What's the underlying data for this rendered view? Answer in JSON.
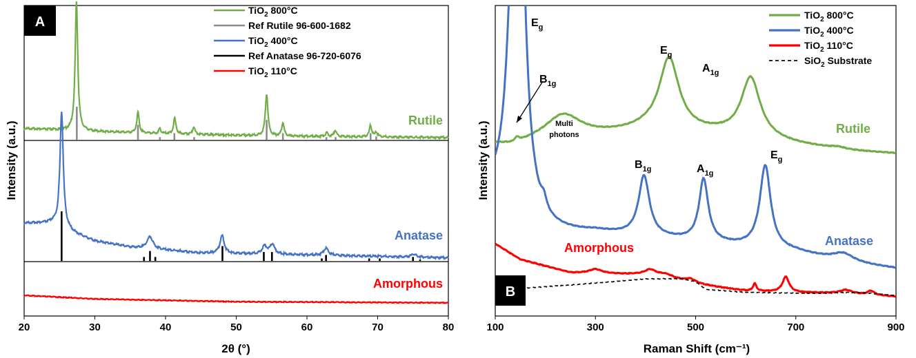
{
  "chart_data": [
    {
      "panel_label": "A",
      "type": "line",
      "xlabel": "2θ (°)",
      "ylabel": "Intensity (a.u.)",
      "xlim": [
        20,
        80
      ],
      "xticks": [
        20,
        30,
        40,
        50,
        60,
        70,
        80
      ],
      "legend_position": "top-right",
      "legend": [
        {
          "text": "TiO",
          "sub": "2",
          "rest": " 800°C",
          "color": "#70ad47"
        },
        {
          "text": "Ref Rutile 96-600-1682",
          "sub": "",
          "rest": "",
          "color": "#8c8c8c"
        },
        {
          "text": "TiO",
          "sub": "2",
          "rest": " 400°C",
          "color": "#4472c4"
        },
        {
          "text": "Ref Anatase 96-720-6076",
          "sub": "",
          "rest": "",
          "color": "#000000"
        },
        {
          "text": "TiO",
          "sub": "2",
          "rest": " 110°C",
          "color": "#ff0000"
        }
      ],
      "phase_labels": [
        {
          "text": "Rutile",
          "color": "#70ad47"
        },
        {
          "text": "Anatase",
          "color": "#4472c4"
        },
        {
          "text": "Amorphous",
          "color": "#ff0000"
        }
      ],
      "series": [
        {
          "name": "TiO2 800°C",
          "color": "#70ad47",
          "baseline": [
            [
              20,
              0.3
            ],
            [
              30,
              0.22
            ],
            [
              40,
              0.16
            ],
            [
              55,
              0.1
            ],
            [
              80,
              0.06
            ]
          ],
          "peaks": [
            [
              27.4,
              3.4,
              0.22
            ],
            [
              36.1,
              0.55,
              0.2
            ],
            [
              39.2,
              0.12,
              0.2
            ],
            [
              41.3,
              0.42,
              0.2
            ],
            [
              44.0,
              0.2,
              0.2
            ],
            [
              54.3,
              1.1,
              0.22
            ],
            [
              56.6,
              0.35,
              0.2
            ],
            [
              62.8,
              0.1,
              0.2
            ],
            [
              64.0,
              0.16,
              0.2
            ],
            [
              69.0,
              0.3,
              0.2
            ],
            [
              69.8,
              0.12,
              0.2
            ]
          ]
        },
        {
          "name": "Ref Rutile 96-600-1682",
          "color": "#8c8c8c",
          "sticks": [
            [
              27.45,
              1.0
            ],
            [
              36.1,
              0.45
            ],
            [
              39.2,
              0.08
            ],
            [
              41.25,
              0.2
            ],
            [
              44.05,
              0.08
            ],
            [
              54.3,
              0.6
            ],
            [
              56.6,
              0.2
            ],
            [
              62.75,
              0.08
            ],
            [
              64.05,
              0.08
            ],
            [
              69.0,
              0.2
            ],
            [
              69.8,
              0.1
            ]
          ]
        },
        {
          "name": "TiO2 400°C",
          "color": "#4472c4",
          "baseline": [
            [
              20,
              0.95
            ],
            [
              24,
              0.95
            ],
            [
              27,
              0.7
            ],
            [
              30,
              0.5
            ],
            [
              35,
              0.35
            ],
            [
              45,
              0.2
            ],
            [
              60,
              0.15
            ],
            [
              80,
              0.08
            ]
          ],
          "peaks": [
            [
              25.3,
              2.9,
              0.28
            ],
            [
              37.8,
              0.3,
              0.5
            ],
            [
              48.0,
              0.45,
              0.35
            ],
            [
              54.0,
              0.2,
              0.4
            ],
            [
              55.1,
              0.25,
              0.4
            ],
            [
              62.7,
              0.18,
              0.4
            ],
            [
              75.1,
              0.08,
              0.4
            ]
          ]
        },
        {
          "name": "Ref Anatase 96-720-6076",
          "color": "#000000",
          "sticks": [
            [
              25.3,
              1.0
            ],
            [
              36.95,
              0.08
            ],
            [
              37.8,
              0.2
            ],
            [
              38.55,
              0.08
            ],
            [
              48.05,
              0.3
            ],
            [
              53.9,
              0.18
            ],
            [
              55.05,
              0.18
            ],
            [
              62.1,
              0.05
            ],
            [
              62.7,
              0.12
            ],
            [
              68.8,
              0.05
            ],
            [
              70.3,
              0.05
            ],
            [
              75.0,
              0.08
            ],
            [
              76.0,
              0.03
            ]
          ]
        },
        {
          "name": "TiO2 110°C",
          "color": "#ff0000",
          "baseline": [
            [
              20,
              0.35
            ],
            [
              30,
              0.22
            ],
            [
              50,
              0.12
            ],
            [
              80,
              0.08
            ]
          ],
          "peaks": []
        }
      ]
    },
    {
      "panel_label": "B",
      "type": "line",
      "xlabel": "Raman Shift (cm⁻¹)",
      "ylabel": "Intensity (a.u.)",
      "xlim": [
        100,
        900
      ],
      "xticks": [
        100,
        300,
        500,
        700,
        900
      ],
      "legend_position": "top-right",
      "legend": [
        {
          "text": "TiO",
          "sub": "2",
          "rest": " 800°C",
          "color": "#70ad47",
          "dash": false
        },
        {
          "text": "TiO",
          "sub": "2",
          "rest": " 400°C",
          "color": "#4472c4",
          "dash": false
        },
        {
          "text": "TiO",
          "sub": "2",
          "rest": " 110°C",
          "color": "#ff0000",
          "dash": false
        },
        {
          "text": "SiO",
          "sub": "2",
          "rest": " Substrate",
          "color": "#000000",
          "dash": true
        }
      ],
      "phase_labels": [
        {
          "text": "Rutile",
          "color": "#70ad47"
        },
        {
          "text": "Anatase",
          "color": "#4472c4"
        },
        {
          "text": "Amorphous",
          "color": "#ff0000"
        }
      ],
      "annotations": [
        {
          "main": "E",
          "sub": "g"
        },
        {
          "main": "B",
          "sub": "1g"
        },
        {
          "main": "E",
          "sub": "g"
        },
        {
          "main": "A",
          "sub": "1g"
        },
        {
          "main": "B",
          "sub": "1g"
        },
        {
          "main": "A",
          "sub": "1g"
        },
        {
          "main": "E",
          "sub": "g"
        }
      ],
      "multiphoton_label": [
        "Multi",
        "photons"
      ],
      "series": [
        {
          "name": "TiO2 800°C",
          "color": "#70ad47",
          "baseline": [
            [
              100,
              3.7
            ],
            [
              135,
              3.65
            ],
            [
              180,
              3.75
            ],
            [
              300,
              3.9
            ],
            [
              400,
              4.05
            ],
            [
              550,
              3.95
            ],
            [
              700,
              3.7
            ],
            [
              800,
              3.55
            ],
            [
              900,
              3.48
            ]
          ],
          "peaks": [
            [
              143,
              0.1,
              6
            ],
            [
              235,
              0.6,
              45
            ],
            [
              447,
              1.75,
              24
            ],
            [
              610,
              1.45,
              23
            ],
            [
              785,
              0.05,
              20
            ]
          ]
        },
        {
          "name": "TiO2 400°C",
          "color": "#4472c4",
          "baseline": [
            [
              100,
              2.2
            ],
            [
              170,
              1.45
            ],
            [
              300,
              1.55
            ],
            [
              500,
              1.35
            ],
            [
              700,
              1.1
            ],
            [
              800,
              0.85
            ],
            [
              900,
              0.7
            ]
          ],
          "peaks": [
            [
              144,
              12,
              15
            ],
            [
              197,
              0.25,
              6
            ],
            [
              397,
              1.45,
              13
            ],
            [
              516,
              1.5,
              11
            ],
            [
              639,
              2.0,
              13
            ],
            [
              795,
              0.2,
              25
            ]
          ]
        },
        {
          "name": "TiO2 110°C",
          "color": "#ff0000",
          "baseline": [
            [
              100,
              1.3
            ],
            [
              150,
              0.92
            ],
            [
              250,
              0.6
            ],
            [
              400,
              0.55
            ],
            [
              500,
              0.32
            ],
            [
              600,
              0.16
            ],
            [
              700,
              0.12
            ],
            [
              800,
              0.1
            ],
            [
              900,
              0.02
            ]
          ],
          "peaks": [
            [
              300,
              0.1,
              15
            ],
            [
              410,
              0.12,
              12
            ],
            [
              440,
              0.1,
              22
            ],
            [
              490,
              0.1,
              14
            ],
            [
              618,
              0.18,
              4
            ],
            [
              680,
              0.37,
              8
            ],
            [
              800,
              0.08,
              14
            ],
            [
              850,
              0.1,
              8
            ]
          ]
        },
        {
          "name": "SiO2 Substrate",
          "color": "#000000",
          "baseline": [
            [
              130,
              0.2
            ],
            [
              250,
              0.3
            ],
            [
              400,
              0.45
            ],
            [
              470,
              0.45
            ],
            [
              500,
              0.38
            ],
            [
              520,
              0.2
            ],
            [
              600,
              0.12
            ],
            [
              760,
              0.1
            ],
            [
              800,
              0.12
            ],
            [
              850,
              0.1
            ],
            [
              900,
              0.05
            ]
          ],
          "peaks": []
        }
      ]
    }
  ]
}
